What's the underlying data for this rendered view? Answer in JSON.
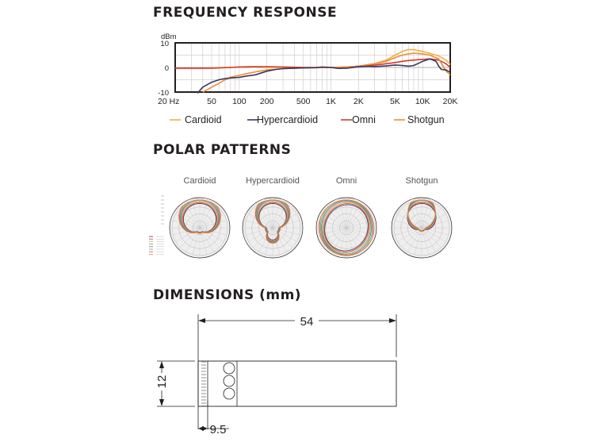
{
  "sections": {
    "frequency_title": "FREQUENCY RESPONSE",
    "polar_title": "POLAR PATTERNS",
    "dimensions_title": "DIMENSIONS (mm)"
  },
  "chart_data": [
    {
      "type": "line",
      "title": "FREQUENCY RESPONSE",
      "ylabel": "dBm",
      "xscale": "log",
      "xlim": [
        20,
        20000
      ],
      "ylim": [
        -10,
        10
      ],
      "x_tick_labels": [
        "20 Hz",
        "50",
        "100",
        "200",
        "500",
        "1K",
        "2K",
        "5K",
        "10K",
        "20K"
      ],
      "x_tick_values": [
        20,
        50,
        100,
        200,
        500,
        1000,
        2000,
        5000,
        10000,
        20000
      ],
      "y_tick_labels": [
        "10",
        "0",
        "-10"
      ],
      "y_tick_values": [
        10,
        0,
        -10
      ],
      "grid": true,
      "legend_position": "bottom",
      "colors": {
        "Cardioid": "#f0b040",
        "Hypercardioid": "#3a3560",
        "Omni": "#d63a2a",
        "Shotgun": "#f08a30"
      },
      "series": [
        {
          "name": "Cardioid",
          "x": [
            20,
            30,
            40,
            50,
            60,
            70,
            80,
            100,
            120,
            150,
            200,
            300,
            500,
            700,
            1000,
            1500,
            2000,
            3000,
            4000,
            5000,
            6000,
            7000,
            8000,
            10000,
            12000,
            15000,
            18000,
            20000
          ],
          "y": [
            -0.3,
            -0.3,
            -0.3,
            -0.2,
            -0.1,
            0,
            0,
            0.2,
            0.3,
            0.3,
            0.2,
            0,
            0,
            0,
            0,
            0.2,
            0.5,
            1.5,
            3,
            5,
            6.5,
            7.3,
            7.2,
            6.5,
            5.7,
            4.7,
            3,
            1.2
          ]
        },
        {
          "name": "Hypercardioid",
          "x": [
            35,
            40,
            50,
            60,
            70,
            80,
            100,
            120,
            150,
            200,
            250,
            300,
            400,
            500,
            700,
            800,
            1000,
            1200,
            1500,
            2000,
            2500,
            3000,
            4000,
            5000,
            6000,
            7000,
            8000,
            10000,
            12000,
            14000,
            15000,
            16000,
            18000,
            20000
          ],
          "y": [
            -10.5,
            -8,
            -6,
            -5,
            -4.5,
            -4.3,
            -4,
            -3.5,
            -3,
            -1.5,
            -0.8,
            -0.5,
            -0.3,
            -0.2,
            -0.1,
            0.2,
            0,
            -0.4,
            -0.3,
            0.3,
            0.5,
            0.4,
            0.6,
            1,
            0.8,
            0.5,
            0.8,
            2.5,
            3.5,
            2.5,
            0.5,
            -0.8,
            -1,
            -2
          ]
        },
        {
          "name": "Omni",
          "x": [
            20,
            30,
            40,
            50,
            60,
            80,
            100,
            150,
            200,
            300,
            500,
            700,
            1000,
            1500,
            2000,
            3000,
            4000,
            5000,
            6000,
            7000,
            8000,
            10000,
            12000,
            15000,
            18000,
            20000
          ],
          "y": [
            -0.3,
            -0.3,
            -0.3,
            -0.3,
            -0.2,
            0,
            0.2,
            0.3,
            0.3,
            0.2,
            0,
            0,
            0,
            0.2,
            0.5,
            1,
            1.5,
            2,
            2.5,
            2.8,
            3,
            3.3,
            3.5,
            3,
            1.5,
            0
          ]
        },
        {
          "name": "Shotgun",
          "x": [
            40,
            45,
            50,
            60,
            70,
            80,
            100,
            120,
            150,
            200,
            250,
            300,
            400,
            500,
            700,
            1000,
            1500,
            2000,
            3000,
            4000,
            5000,
            6000,
            7000,
            8000,
            10000,
            12000,
            15000,
            18000,
            20000
          ],
          "y": [
            -10,
            -9,
            -8,
            -6.5,
            -5,
            -4,
            -3.2,
            -2.5,
            -1.8,
            -1,
            -0.7,
            -0.5,
            -0.3,
            -0.2,
            0,
            0,
            0.2,
            0.5,
            1.5,
            2.5,
            4,
            5,
            5.5,
            5.8,
            5.5,
            5,
            3.5,
            -1.5,
            -3
          ]
        }
      ]
    },
    {
      "type": "polar",
      "title": "POLAR PATTERNS",
      "diagrams": [
        {
          "name": "Cardioid",
          "shape": "cardioid"
        },
        {
          "name": "Hypercardioid",
          "shape": "hypercardioid"
        },
        {
          "name": "Omni",
          "shape": "omni"
        },
        {
          "name": "Shotgun",
          "shape": "shotgun"
        }
      ]
    }
  ],
  "dimensions": {
    "length": "54",
    "diameter": "12",
    "offset": "9.5"
  }
}
